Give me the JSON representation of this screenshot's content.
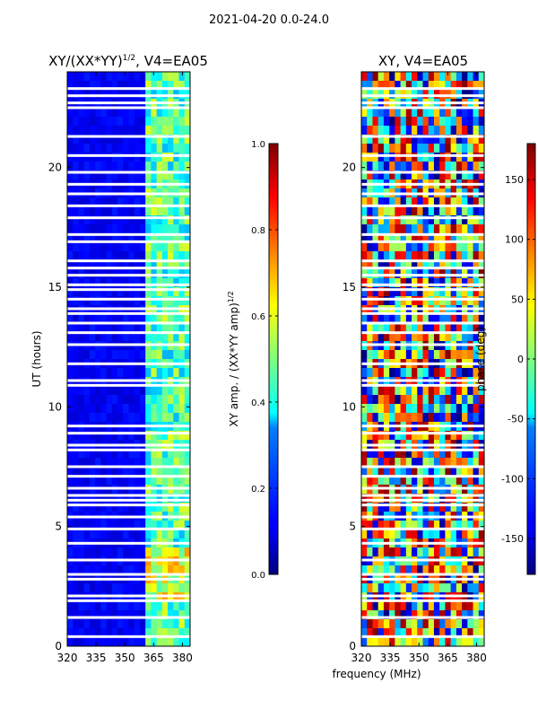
{
  "figure": {
    "suptitle": "2021-04-20 0.0-24.0",
    "xlabel_shared": "frequency (MHz)"
  },
  "chart_data": [
    {
      "type": "heatmap",
      "title": "XY/(XX*YY)^1/2, V4=EA05",
      "title_main": "XY/(XX*YY)",
      "title_exp": "1/2",
      "title_tail": ", V4=EA05",
      "xlabel": "frequency (MHz)",
      "ylabel": "UT (hours)",
      "xlim": [
        320,
        384
      ],
      "ylim": [
        0,
        24
      ],
      "xticks": [
        320,
        335,
        350,
        365,
        380
      ],
      "yticks": [
        0,
        5,
        10,
        15,
        20
      ],
      "colorbar": {
        "label": "XY amp. / (XX*YY amp)^1/2",
        "label_main": "XY amp. / (XX*YY amp)",
        "label_exp": "1/2",
        "range": [
          0.0,
          1.0
        ],
        "ticks": [
          "0.0",
          "0.2",
          "0.4",
          "0.6",
          "0.8",
          "1.0"
        ]
      },
      "description": "mostly low amplitude (~0.05-0.1) below 362 MHz; elevated 0.3-0.6 in channel bands 362-382 MHz, stronger near 2-4 UT"
    },
    {
      "type": "heatmap",
      "title": "XY, V4=EA05",
      "xlabel": "frequency (MHz)",
      "ylabel": "",
      "xlim": [
        320,
        384
      ],
      "ylim": [
        0,
        24
      ],
      "xticks": [
        320,
        335,
        350,
        365,
        380
      ],
      "yticks": [
        0,
        5,
        10,
        15,
        20
      ],
      "colorbar": {
        "label": "phase (deg)",
        "range": [
          -180,
          180
        ],
        "ticks": [
          "-150",
          "-100",
          "-50",
          "0",
          "50",
          "100",
          "150"
        ]
      },
      "description": "phase values noisy across full range -180 to 180 deg"
    }
  ],
  "flagged_rows_hours": [
    0.4,
    1.2,
    1.9,
    2.1,
    2.8,
    3.0,
    3.6,
    4.3,
    4.9,
    5.4,
    5.9,
    6.1,
    6.3,
    6.6,
    7.1,
    7.5,
    8.2,
    8.4,
    8.9,
    9.2,
    10.9,
    11.1,
    11.8,
    12.6,
    13.1,
    13.5,
    13.9,
    14.1,
    14.5,
    14.9,
    15.1,
    15.5,
    15.8,
    16.1,
    16.9,
    17.2,
    17.9,
    18.4,
    18.9,
    19.3,
    19.8,
    20.5,
    21.3,
    22.5,
    22.7,
    23.0,
    23.3
  ]
}
